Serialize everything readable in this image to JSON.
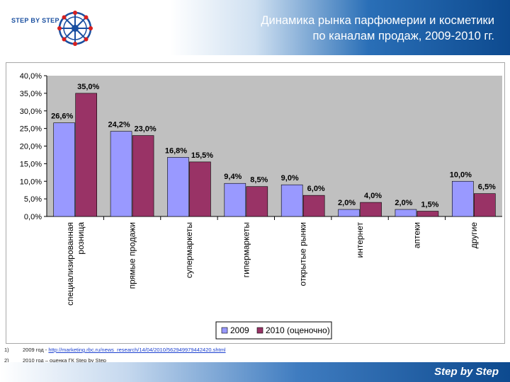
{
  "header": {
    "logo_text": "STEP BY STEP",
    "title_line1": "Динамика рынка парфюмерии и косметики",
    "title_line2": "по каналам продаж, 2009-2010 гг."
  },
  "chart_data": {
    "type": "bar",
    "categories": [
      [
        "специализированная",
        "розница"
      ],
      [
        "прямые продажи"
      ],
      [
        "супермаркеты"
      ],
      [
        "гипермаркеты"
      ],
      [
        "открытые рынки"
      ],
      [
        "интернет"
      ],
      [
        "аптеки"
      ],
      [
        "другие"
      ]
    ],
    "series": [
      {
        "name": "2009",
        "color": "#9999ff",
        "values": [
          26.6,
          24.2,
          16.8,
          9.4,
          9.0,
          2.0,
          2.0,
          10.0
        ],
        "labels": [
          "26,6%",
          "24,2%",
          "16,8%",
          "9,4%",
          "9,0%",
          "2,0%",
          "2,0%",
          "10,0%"
        ]
      },
      {
        "name": "2010 (оценочно)",
        "color": "#993366",
        "values": [
          35.0,
          23.0,
          15.5,
          8.5,
          6.0,
          4.0,
          1.5,
          6.5
        ],
        "labels": [
          "35,0%",
          "23,0%",
          "15,5%",
          "8,5%",
          "6,0%",
          "4,0%",
          "1,5%",
          "6,5%"
        ]
      }
    ],
    "ylim": [
      0,
      40
    ],
    "yticks": [
      0,
      5,
      10,
      15,
      20,
      25,
      30,
      35,
      40
    ],
    "ytick_labels": [
      "0,0%",
      "5,0%",
      "10,0%",
      "15,0%",
      "20,0%",
      "25,0%",
      "30,0%",
      "35,0%",
      "40,0%"
    ],
    "grid": false,
    "legend_position": "bottom-right",
    "background": "#c0c0c0"
  },
  "footnotes": [
    {
      "num": "1)",
      "prefix": "2009 год - ",
      "link": "http://marketing.rbc.ru/news_research/14/04/2010/562949979442420.shtml",
      "text": ""
    },
    {
      "num": "2)",
      "prefix": "2010 год – оценка ГК Step by Step",
      "link": "",
      "text": ""
    }
  ],
  "footer": {
    "brand": "Step by Step"
  }
}
